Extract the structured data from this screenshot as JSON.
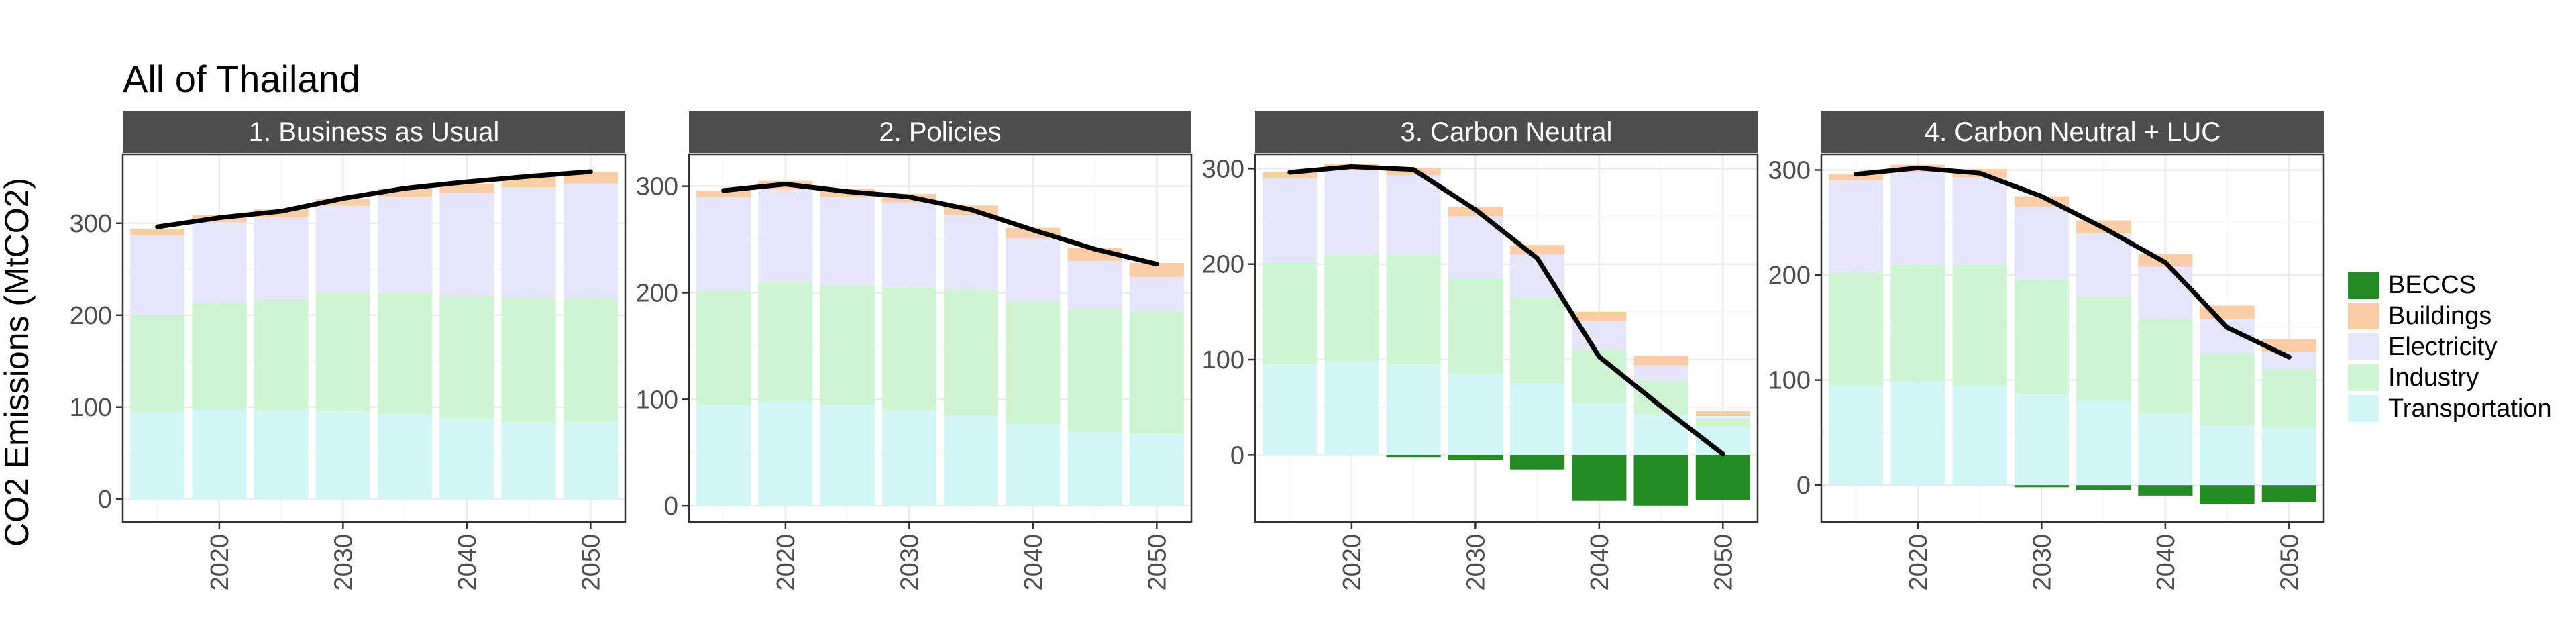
{
  "title": "All of Thailand",
  "ylabel": "CO2 Emissions (MtCO2)",
  "legend": {
    "placement": "right",
    "entries": [
      {
        "name": "BECCS",
        "color": "#228B22"
      },
      {
        "name": "Buildings",
        "color": "#F9CDA6"
      },
      {
        "name": "Electricity",
        "color": "#E6E6FA"
      },
      {
        "name": "Industry",
        "color": "#CFF4D2"
      },
      {
        "name": "Transportation",
        "color": "#D2F5F5"
      }
    ]
  },
  "colors": {
    "panel_strip": "#4D4D4D",
    "strip_text": "#FFFFFF",
    "grid_major": "#EBEBEB",
    "grid_minor": "#F6F6F6",
    "total_line": "#000000",
    "panel_border": "#333333",
    "axis_text": "#4D4D4D"
  },
  "chart_data": [
    {
      "type": "bar",
      "facet": "1. Business as Usual",
      "x": [
        2015,
        2020,
        2025,
        2030,
        2035,
        2040,
        2045,
        2050
      ],
      "xticks": [
        2020,
        2030,
        2040,
        2050
      ],
      "yticks": [
        0,
        100,
        200,
        300
      ],
      "ylim": [
        -25,
        375
      ],
      "stacked": true,
      "grid": true,
      "series": [
        {
          "name": "Transportation",
          "values": [
            95,
            98,
            97,
            96,
            92,
            88,
            84,
            84
          ]
        },
        {
          "name": "Industry",
          "values": [
            105,
            115,
            120,
            128,
            132,
            133,
            135,
            135
          ]
        },
        {
          "name": "Electricity",
          "values": [
            87,
            88,
            90,
            95,
            105,
            112,
            120,
            124
          ]
        },
        {
          "name": "Buildings",
          "values": [
            7,
            8,
            8,
            8,
            9,
            10,
            12,
            13
          ]
        },
        {
          "name": "BECCS",
          "values": [
            0,
            0,
            0,
            0,
            0,
            0,
            0,
            0
          ]
        }
      ],
      "line": {
        "x": [
          2015,
          2020,
          2025,
          2030,
          2035,
          2040,
          2045,
          2050
        ],
        "values": [
          296,
          306,
          313,
          327,
          338,
          345,
          351,
          356
        ]
      }
    },
    {
      "type": "bar",
      "facet": "2. Policies",
      "x": [
        2015,
        2020,
        2025,
        2030,
        2035,
        2040,
        2045,
        2050
      ],
      "xticks": [
        2020,
        2030,
        2040,
        2050
      ],
      "yticks": [
        0,
        100,
        200,
        300
      ],
      "ylim": [
        -15,
        330
      ],
      "stacked": true,
      "grid": true,
      "series": [
        {
          "name": "Transportation",
          "values": [
            95,
            98,
            95,
            90,
            85,
            77,
            70,
            68
          ]
        },
        {
          "name": "Industry",
          "values": [
            107,
            112,
            112,
            115,
            118,
            116,
            115,
            115
          ]
        },
        {
          "name": "Electricity",
          "values": [
            88,
            88,
            83,
            80,
            70,
            58,
            45,
            32
          ]
        },
        {
          "name": "Buildings",
          "values": [
            6,
            7,
            8,
            8,
            9,
            10,
            12,
            13
          ]
        },
        {
          "name": "BECCS",
          "values": [
            0,
            0,
            0,
            0,
            0,
            0,
            0,
            0
          ]
        }
      ],
      "line": {
        "x": [
          2015,
          2020,
          2025,
          2030,
          2035,
          2040,
          2045,
          2050
        ],
        "values": [
          296,
          302,
          295,
          290,
          278,
          259,
          241,
          227
        ]
      }
    },
    {
      "type": "bar",
      "facet": "3. Carbon Neutral",
      "x": [
        2015,
        2020,
        2025,
        2030,
        2035,
        2040,
        2045,
        2050
      ],
      "xticks": [
        2020,
        2030,
        2040,
        2050
      ],
      "yticks": [
        0,
        100,
        200,
        300
      ],
      "ylim": [
        -70,
        315
      ],
      "stacked": true,
      "grid": true,
      "series": [
        {
          "name": "Transportation",
          "values": [
            95,
            98,
            95,
            85,
            75,
            55,
            43,
            30
          ]
        },
        {
          "name": "Industry",
          "values": [
            107,
            112,
            115,
            100,
            90,
            55,
            35,
            8
          ]
        },
        {
          "name": "Electricity",
          "values": [
            88,
            88,
            83,
            65,
            45,
            30,
            16,
            3
          ]
        },
        {
          "name": "Buildings",
          "values": [
            6,
            7,
            8,
            10,
            10,
            10,
            10,
            5
          ]
        },
        {
          "name": "BECCS",
          "values": [
            0,
            0,
            -2,
            -5,
            -15,
            -48,
            -53,
            -47
          ]
        }
      ],
      "line": {
        "x": [
          2015,
          2020,
          2025,
          2030,
          2035,
          2040,
          2045,
          2050
        ],
        "values": [
          296,
          302,
          299,
          257,
          206,
          103,
          51,
          1
        ]
      }
    },
    {
      "type": "bar",
      "facet": "4. Carbon Neutral + LUC",
      "x": [
        2015,
        2020,
        2025,
        2030,
        2035,
        2040,
        2045,
        2050
      ],
      "xticks": [
        2020,
        2030,
        2040,
        2050
      ],
      "yticks": [
        0,
        100,
        200,
        300
      ],
      "ylim": [
        -35,
        315
      ],
      "stacked": true,
      "grid": true,
      "series": [
        {
          "name": "Transportation",
          "values": [
            95,
            98,
            95,
            87,
            80,
            68,
            57,
            55
          ]
        },
        {
          "name": "Industry",
          "values": [
            107,
            112,
            115,
            108,
            100,
            90,
            68,
            55
          ]
        },
        {
          "name": "Electricity",
          "values": [
            88,
            88,
            83,
            70,
            60,
            50,
            33,
            17
          ]
        },
        {
          "name": "Buildings",
          "values": [
            6,
            7,
            8,
            10,
            12,
            12,
            13,
            12
          ]
        },
        {
          "name": "BECCS",
          "values": [
            0,
            0,
            0,
            -2,
            -5,
            -10,
            -18,
            -16
          ]
        }
      ],
      "line": {
        "x": [
          2015,
          2020,
          2025,
          2030,
          2035,
          2040,
          2045,
          2050
        ],
        "values": [
          296,
          302,
          297,
          275,
          245,
          212,
          150,
          122
        ]
      }
    }
  ]
}
